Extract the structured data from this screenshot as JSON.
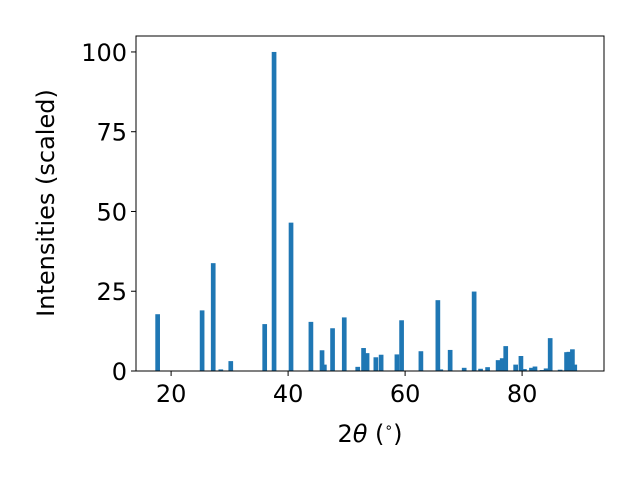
{
  "colors": {
    "bar": "#1f77b4",
    "axis": "#000000",
    "background": "#ffffff"
  },
  "chart_data": {
    "type": "bar",
    "xlabel_parts": [
      "2",
      "θ",
      " (",
      "∘",
      ")"
    ],
    "ylabel": "Intensities (scaled)",
    "xlim": [
      14,
      94
    ],
    "ylim": [
      0,
      105
    ],
    "xticks": [
      20,
      40,
      60,
      80
    ],
    "yticks": [
      0,
      25,
      50,
      75,
      100
    ],
    "bar_width_x": 0.8,
    "grid": false,
    "x": [
      17.7,
      25.3,
      27.2,
      28.5,
      30.2,
      36.0,
      37.6,
      40.5,
      43.9,
      45.8,
      46.2,
      47.6,
      49.6,
      51.9,
      52.9,
      53.5,
      55.0,
      55.9,
      58.6,
      59.4,
      62.7,
      65.6,
      66.1,
      67.7,
      70.1,
      71.8,
      72.9,
      74.1,
      75.9,
      76.6,
      77.2,
      78.9,
      79.8,
      80.4,
      81.6,
      82.2,
      83.4,
      84.1,
      84.8,
      86.5,
      87.6,
      88.0,
      88.6,
      89.0
    ],
    "values": [
      17.8,
      19.0,
      33.8,
      0.5,
      3.1,
      14.7,
      100.0,
      46.5,
      15.4,
      6.5,
      2.0,
      13.4,
      16.8,
      1.3,
      7.2,
      5.6,
      4.3,
      5.1,
      5.2,
      15.9,
      6.2,
      22.2,
      0.5,
      6.6,
      1.0,
      24.9,
      0.7,
      1.2,
      3.4,
      4.0,
      7.8,
      2.0,
      4.7,
      0.6,
      1.0,
      1.4,
      0.3,
      0.8,
      10.3,
      0.4,
      5.9,
      6.0,
      6.8,
      2.0
    ]
  }
}
